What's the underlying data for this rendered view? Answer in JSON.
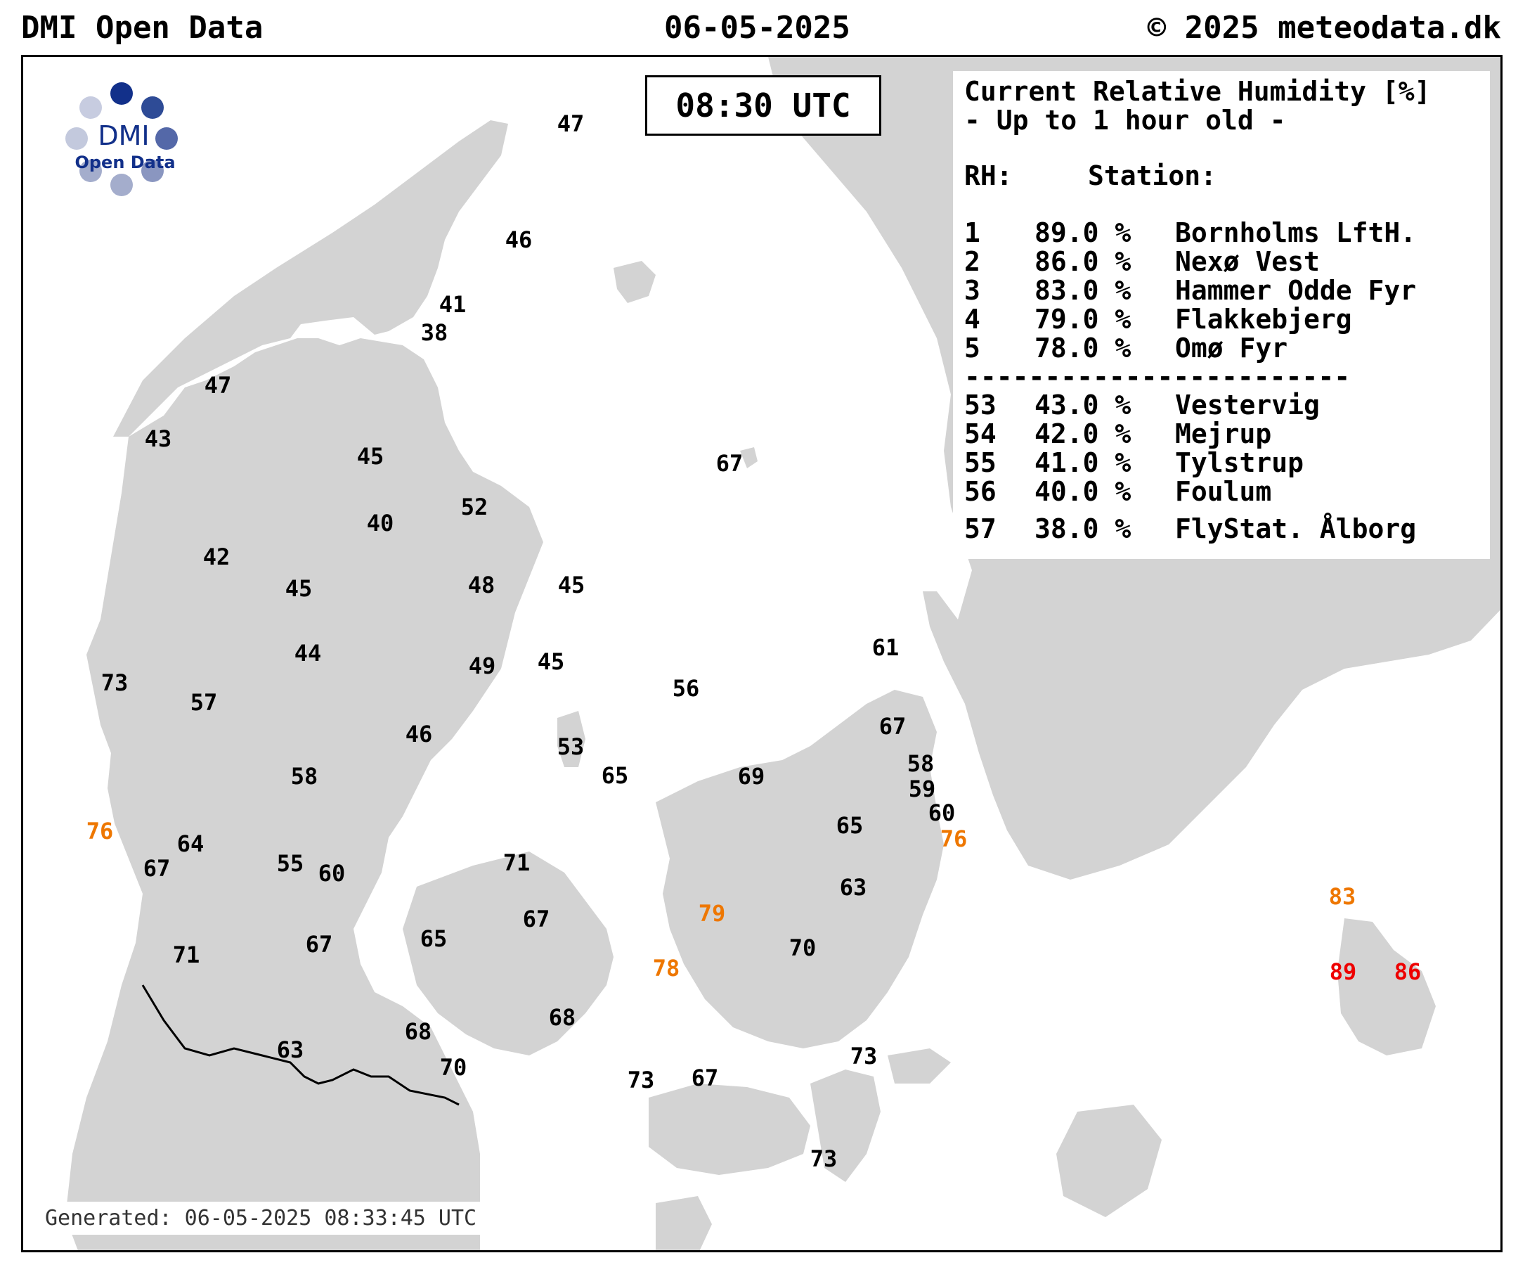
{
  "header": {
    "left": "DMI Open Data",
    "center": "06-05-2025",
    "right": "© 2025 meteodata.dk"
  },
  "logo": {
    "name": "DMI",
    "subtitle": "Open Data"
  },
  "time_box": "08:30 UTC",
  "legend": {
    "title_line1": "Current Relative Humidity [%]",
    "title_line2": "- Up to 1 hour old -",
    "col_rh": "RH:",
    "col_station": "Station:",
    "separator": "------------------------",
    "top": [
      {
        "rank": "1",
        "value": "89.0 %",
        "station": "Bornholms LftH."
      },
      {
        "rank": "2",
        "value": "86.0 %",
        "station": "Nexø Vest"
      },
      {
        "rank": "3",
        "value": "83.0 %",
        "station": "Hammer Odde Fyr"
      },
      {
        "rank": "4",
        "value": "79.0 %",
        "station": "Flakkebjerg"
      },
      {
        "rank": "5",
        "value": "78.0 %",
        "station": "Omø Fyr"
      }
    ],
    "bottom": [
      {
        "rank": "53",
        "value": "43.0 %",
        "station": "Vestervig"
      },
      {
        "rank": "54",
        "value": "42.0 %",
        "station": "Mejrup"
      },
      {
        "rank": "55",
        "value": "41.0 %",
        "station": "Tylstrup"
      },
      {
        "rank": "56",
        "value": "40.0 %",
        "station": "Foulum"
      },
      {
        "rank": "57",
        "value": "38.0 %",
        "station": "FlyStat. Ålborg"
      }
    ]
  },
  "generated": "Generated: 06-05-2025 08:33:45 UTC",
  "colors": {
    "land": "#d3d3d3",
    "sea": "#ffffff",
    "normal": "#000000",
    "high": "#ee7700",
    "top": "#ee0000",
    "logo_dots": [
      "#12308a",
      "#2e4b96",
      "#5468a8",
      "#8a96c0",
      "#a4adcc",
      "#a4adcc",
      "#c3c9dd",
      "#c7cce0"
    ]
  },
  "stations": [
    {
      "v": "47",
      "c": "normal"
    },
    {
      "v": "46",
      "c": "normal"
    },
    {
      "v": "41",
      "c": "normal"
    },
    {
      "v": "38",
      "c": "normal"
    },
    {
      "v": "47",
      "c": "normal"
    },
    {
      "v": "43",
      "c": "normal"
    },
    {
      "v": "45",
      "c": "normal"
    },
    {
      "v": "67",
      "c": "normal"
    },
    {
      "v": "52",
      "c": "normal"
    },
    {
      "v": "40",
      "c": "normal"
    },
    {
      "v": "42",
      "c": "normal"
    },
    {
      "v": "45",
      "c": "normal"
    },
    {
      "v": "48",
      "c": "normal"
    },
    {
      "v": "45",
      "c": "normal"
    },
    {
      "v": "61",
      "c": "normal"
    },
    {
      "v": "44",
      "c": "normal"
    },
    {
      "v": "49",
      "c": "normal"
    },
    {
      "v": "45",
      "c": "normal"
    },
    {
      "v": "73",
      "c": "normal"
    },
    {
      "v": "57",
      "c": "normal"
    },
    {
      "v": "56",
      "c": "normal"
    },
    {
      "v": "67",
      "c": "normal"
    },
    {
      "v": "46",
      "c": "normal"
    },
    {
      "v": "53",
      "c": "normal"
    },
    {
      "v": "58",
      "c": "normal"
    },
    {
      "v": "65",
      "c": "normal"
    },
    {
      "v": "69",
      "c": "normal"
    },
    {
      "v": "58",
      "c": "normal"
    },
    {
      "v": "59",
      "c": "normal"
    },
    {
      "v": "60",
      "c": "normal"
    },
    {
      "v": "76",
      "c": "high"
    },
    {
      "v": "65",
      "c": "normal"
    },
    {
      "v": "76",
      "c": "high"
    },
    {
      "v": "64",
      "c": "normal"
    },
    {
      "v": "67",
      "c": "normal"
    },
    {
      "v": "55",
      "c": "normal"
    },
    {
      "v": "60",
      "c": "normal"
    },
    {
      "v": "71",
      "c": "normal"
    },
    {
      "v": "63",
      "c": "normal"
    },
    {
      "v": "83",
      "c": "high"
    },
    {
      "v": "67",
      "c": "normal"
    },
    {
      "v": "79",
      "c": "high"
    },
    {
      "v": "71",
      "c": "normal"
    },
    {
      "v": "67",
      "c": "normal"
    },
    {
      "v": "65",
      "c": "normal"
    },
    {
      "v": "70",
      "c": "normal"
    },
    {
      "v": "78",
      "c": "high"
    },
    {
      "v": "89",
      "c": "top"
    },
    {
      "v": "86",
      "c": "top"
    },
    {
      "v": "68",
      "c": "normal"
    },
    {
      "v": "68",
      "c": "normal"
    },
    {
      "v": "63",
      "c": "normal"
    },
    {
      "v": "70",
      "c": "normal"
    },
    {
      "v": "73",
      "c": "normal"
    },
    {
      "v": "73",
      "c": "normal"
    },
    {
      "v": "67",
      "c": "normal"
    },
    {
      "v": "73",
      "c": "normal"
    }
  ]
}
